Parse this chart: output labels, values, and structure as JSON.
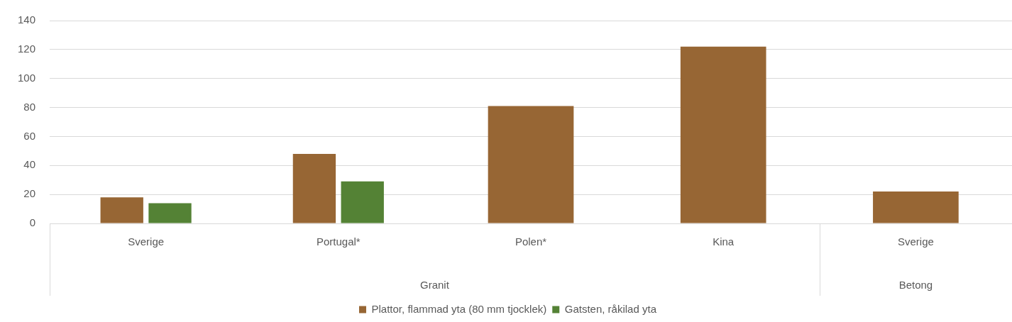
{
  "chart_data": {
    "type": "bar",
    "categories": [
      "Sverige",
      "Portugal*",
      "Polen*",
      "Kina",
      "Sverige"
    ],
    "series": [
      {
        "name": "Plattor, flammad yta (80 mm tjocklek)",
        "color": "#976634",
        "values": [
          18,
          48,
          81,
          122,
          22
        ]
      },
      {
        "name": "Gatsten, råkilad yta",
        "color": "#548235",
        "values": [
          14,
          29,
          null,
          null,
          null
        ]
      }
    ],
    "annotations": [
      "Granit",
      "Betong"
    ],
    "ylim": [
      0,
      140
    ],
    "yticks": [
      0,
      20,
      40,
      60,
      80,
      100,
      120,
      140
    ],
    "grid": "y",
    "legend": "bottom"
  }
}
